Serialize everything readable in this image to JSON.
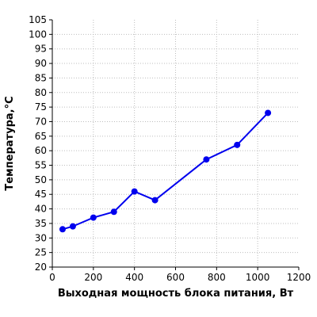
{
  "chart_data": {
    "type": "line",
    "title": "",
    "xlabel": "Выходная мощность блока питания, Вт",
    "ylabel": "Температура,°С",
    "xlim": [
      0,
      1200
    ],
    "ylim": [
      20,
      105
    ],
    "x_ticks": [
      0,
      200,
      400,
      600,
      800,
      1000,
      1200
    ],
    "y_ticks": [
      20,
      25,
      30,
      35,
      40,
      45,
      50,
      55,
      60,
      65,
      70,
      75,
      80,
      85,
      90,
      95,
      100,
      105
    ],
    "grid": true,
    "series": [
      {
        "color": "#0000ee",
        "x": [
          50,
          100,
          200,
          300,
          400,
          500,
          750,
          900,
          1050
        ],
        "y": [
          33,
          34,
          37,
          39,
          46,
          43,
          57,
          62,
          73
        ]
      }
    ]
  }
}
